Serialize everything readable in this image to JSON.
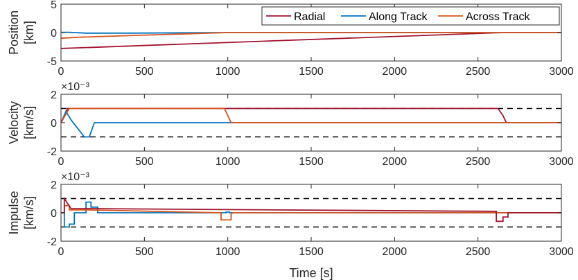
{
  "colors": {
    "radial": "#A2142F",
    "along": "#0072BD",
    "across": "#D95319",
    "bound": "#000000"
  },
  "chart_data": [
    {
      "type": "line",
      "ylabel_lines": [
        "Position",
        "[km]"
      ],
      "xlim": [
        0,
        3000
      ],
      "ylim": [
        -5,
        5
      ],
      "xticks": [
        0,
        500,
        1000,
        1500,
        2000,
        2500,
        3000
      ],
      "yticks": [
        -5,
        0,
        5
      ],
      "exponent_label": "",
      "legend": {
        "placement": "top-right",
        "entries": [
          "Radial",
          "Along Track",
          "Across Track"
        ]
      },
      "series": [
        {
          "name": "Radial",
          "color_key": "radial",
          "x": [
            0,
            2650,
            3000
          ],
          "y": [
            -2.8,
            0,
            0
          ]
        },
        {
          "name": "Along Track",
          "color_key": "along",
          "x": [
            0,
            50,
            150,
            400,
            1000,
            3000
          ],
          "y": [
            0.05,
            0.05,
            -0.1,
            -0.1,
            0,
            0
          ]
        },
        {
          "name": "Across Track",
          "color_key": "across",
          "x": [
            0,
            120,
            1000,
            3000
          ],
          "y": [
            -1.0,
            -0.8,
            0,
            0
          ]
        }
      ]
    },
    {
      "type": "line",
      "ylabel_lines": [
        "Velocity",
        "[km/s]"
      ],
      "xlim": [
        0,
        3000
      ],
      "ylim": [
        -2,
        2
      ],
      "xticks": [
        0,
        500,
        1000,
        1500,
        2000,
        2500,
        3000
      ],
      "yticks": [
        -2,
        0,
        2
      ],
      "exponent_label": "×10⁻³",
      "bounds": [
        1,
        -1
      ],
      "series": [
        {
          "name": "Radial",
          "color_key": "radial",
          "x": [
            0,
            40,
            2620,
            2650,
            2670,
            3000
          ],
          "y": [
            0,
            1,
            1,
            0.5,
            0,
            0
          ]
        },
        {
          "name": "Along Track",
          "color_key": "along",
          "x": [
            0,
            30,
            60,
            140,
            170,
            200,
            1000,
            3000
          ],
          "y": [
            0,
            0.8,
            0.2,
            -1,
            -1,
            0,
            0,
            0
          ]
        },
        {
          "name": "Across Track",
          "color_key": "across",
          "x": [
            0,
            50,
            980,
            1000,
            1020,
            3000
          ],
          "y": [
            0,
            1,
            1,
            0.5,
            0,
            0
          ]
        }
      ]
    },
    {
      "type": "line",
      "ylabel_lines": [
        "Impulse",
        "[km/s]"
      ],
      "xlabel": "Time [s]",
      "xlim": [
        0,
        3000
      ],
      "ylim": [
        -2,
        2
      ],
      "xticks": [
        0,
        500,
        1000,
        1500,
        2000,
        2500,
        3000
      ],
      "yticks": [
        -2,
        0,
        2
      ],
      "exponent_label": "×10⁻³",
      "bounds": [
        1,
        -1
      ],
      "series": [
        {
          "name": "Along Track",
          "color_key": "along",
          "step": true,
          "x": [
            0,
            20,
            20,
            50,
            50,
            80,
            80,
            150,
            150,
            180,
            180,
            220,
            220,
            990,
            990,
            1010,
            1010,
            3000
          ],
          "y": [
            0,
            0,
            -1,
            -1,
            -0.8,
            -0.8,
            0,
            0,
            0.75,
            0.75,
            0.4,
            0.4,
            0,
            0,
            0.05,
            0.05,
            0,
            0
          ]
        },
        {
          "name": "Across Track",
          "color_key": "across",
          "step": true,
          "x": [
            0,
            20,
            20,
            50,
            50,
            160,
            960,
            960,
            1020,
            1020,
            1030,
            3000
          ],
          "y": [
            0,
            0,
            0.5,
            0.5,
            0.2,
            0.2,
            0,
            -0.5,
            -0.5,
            -0.1,
            0,
            0
          ]
        },
        {
          "name": "Radial",
          "color_key": "radial",
          "step": true,
          "x": [
            0,
            20,
            20,
            60,
            2600,
            2610,
            2610,
            2650,
            2650,
            2680,
            2680,
            3000
          ],
          "y": [
            0,
            0,
            1,
            0.3,
            0.1,
            0.1,
            -0.6,
            -0.6,
            -0.3,
            -0.3,
            0,
            0
          ]
        }
      ]
    }
  ]
}
